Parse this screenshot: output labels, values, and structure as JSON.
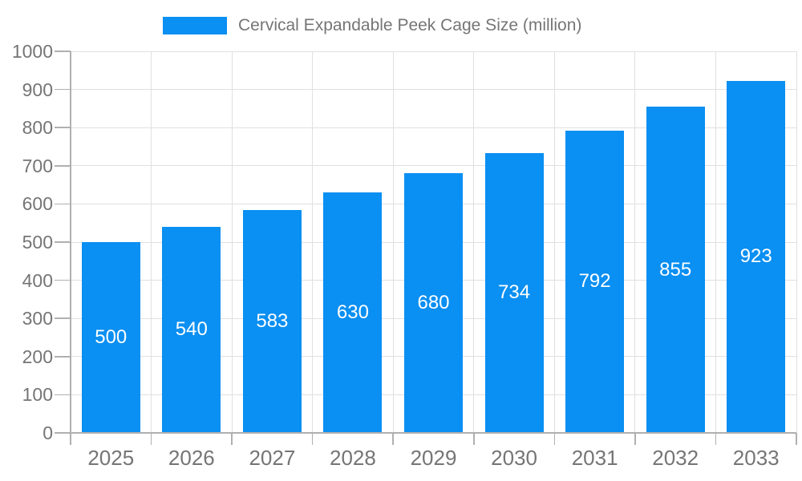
{
  "chart_data": {
    "type": "bar",
    "title": "Cervical Expandable Peek Cage Size (million)",
    "categories": [
      "2025",
      "2026",
      "2027",
      "2028",
      "2029",
      "2030",
      "2031",
      "2032",
      "2033"
    ],
    "series": [
      {
        "name": "Cervical Expandable Peek Cage Size (million)",
        "values": [
          500,
          540,
          583,
          630,
          680,
          734,
          792,
          855,
          923
        ]
      }
    ],
    "xlabel": "",
    "ylabel": "",
    "ylim": [
      0,
      1000
    ],
    "ytick_step": 100,
    "grid": true,
    "data_labels_position": "inside-center",
    "legend_position": "top-center"
  },
  "colors": {
    "bar": "#0a8ff2",
    "axis": "#b0b0b0",
    "grid": "#e0e0e0",
    "text": "#757575",
    "bar_label": "#ffffff",
    "background": "#ffffff"
  }
}
